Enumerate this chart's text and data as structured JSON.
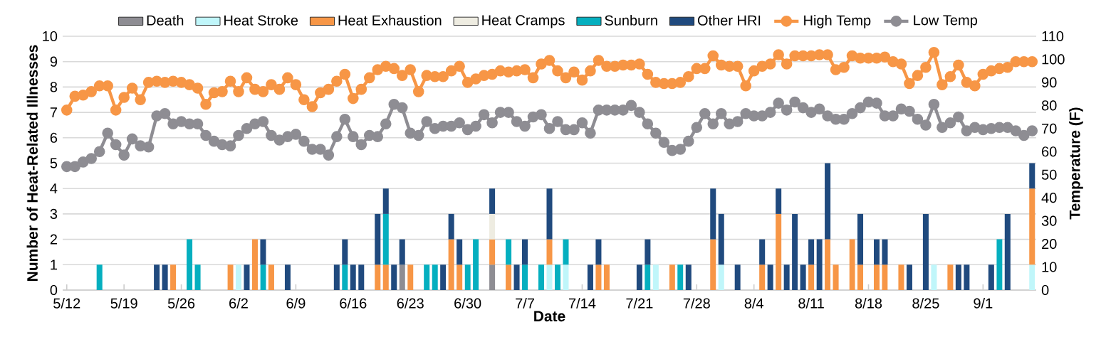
{
  "chart_data": {
    "type": "bar",
    "stacked": true,
    "xlabel": "Date",
    "ylabel": "Number of Heat-Related Illnesses",
    "y2label": "Temperature (F)",
    "categories": [
      "5/12",
      null,
      null,
      null,
      null,
      null,
      null,
      "5/19",
      null,
      null,
      null,
      null,
      null,
      null,
      "5/26",
      null,
      null,
      null,
      null,
      null,
      null,
      "6/2",
      null,
      null,
      null,
      null,
      null,
      null,
      "6/9",
      null,
      null,
      null,
      null,
      null,
      null,
      "6/16",
      null,
      null,
      null,
      null,
      null,
      null,
      "6/23",
      null,
      null,
      null,
      null,
      null,
      null,
      "6/30",
      null,
      null,
      null,
      null,
      null,
      null,
      "7/7",
      null,
      null,
      null,
      null,
      null,
      null,
      "7/14",
      null,
      null,
      null,
      null,
      null,
      null,
      "7/21",
      null,
      null,
      null,
      null,
      null,
      null,
      "7/28",
      null,
      null,
      null,
      null,
      null,
      null,
      "8/4",
      null,
      null,
      null,
      null,
      null,
      null,
      "8/11",
      null,
      null,
      null,
      null,
      null,
      null,
      "8/18",
      null,
      null,
      null,
      null,
      null,
      null,
      "8/25",
      null,
      null,
      null,
      null,
      null,
      null,
      "9/1",
      null,
      null,
      null,
      null,
      null,
      null
    ],
    "ylim": [
      0,
      10
    ],
    "yticks": [
      0,
      1,
      2,
      3,
      4,
      5,
      6,
      7,
      8,
      9,
      10
    ],
    "y2lim": [
      0,
      110
    ],
    "y2ticks": [
      0,
      10,
      20,
      30,
      40,
      50,
      60,
      70,
      80,
      90,
      100,
      110
    ],
    "grid": "y",
    "legend": "top",
    "series": [
      {
        "name": "Death",
        "color": "#8e8d93",
        "values": [
          0,
          0,
          0,
          0,
          0,
          0,
          0,
          0,
          0,
          0,
          0,
          0,
          0,
          0,
          0,
          0,
          0,
          0,
          0,
          0,
          0,
          0,
          0,
          0,
          0,
          0,
          0,
          0,
          0,
          0,
          0,
          0,
          0,
          0,
          0,
          0,
          0,
          0,
          0,
          0,
          0,
          1,
          0,
          0,
          0,
          0,
          0,
          0,
          0,
          0,
          0,
          0,
          1,
          0,
          0,
          0,
          0,
          0,
          0,
          0,
          0,
          0,
          0,
          0,
          0,
          0,
          0,
          0,
          0,
          0,
          0,
          0,
          0,
          0,
          0,
          0,
          0,
          0,
          0,
          0,
          0,
          0,
          0,
          0,
          0,
          0,
          0,
          0,
          0,
          0,
          0,
          0,
          0,
          0,
          0,
          0,
          0,
          0,
          0,
          0,
          0,
          0,
          0,
          0,
          0,
          0,
          0,
          0,
          0,
          0,
          0,
          0,
          0,
          0,
          0,
          0,
          0,
          0,
          0
        ]
      },
      {
        "name": "Heat Stroke",
        "color": "#c0f6fa",
        "values": [
          0,
          0,
          0,
          0,
          0,
          0,
          0,
          0,
          0,
          0,
          0,
          0,
          0,
          0,
          0,
          0,
          0,
          0,
          0,
          0,
          0,
          1,
          0,
          0,
          0,
          0,
          0,
          0,
          0,
          0,
          0,
          0,
          0,
          0,
          0,
          0,
          0,
          0,
          0,
          0,
          0,
          0,
          0,
          0,
          0,
          0,
          0,
          0,
          0,
          0,
          0,
          0,
          0,
          0,
          0,
          0,
          0,
          0,
          0,
          1,
          0,
          1,
          0,
          0,
          0,
          0,
          0,
          0,
          0,
          0,
          0,
          0,
          1,
          0,
          0,
          0,
          0,
          0,
          0,
          0,
          1,
          0,
          0,
          0,
          0,
          0,
          0,
          0,
          0,
          0,
          0,
          0,
          0,
          0,
          0,
          0,
          0,
          0,
          0,
          0,
          0,
          0,
          0,
          0,
          0,
          0,
          1,
          0,
          0,
          0,
          0,
          0,
          0,
          0,
          0,
          0,
          0,
          0,
          1
        ]
      },
      {
        "name": "Heat Exhaustion",
        "color": "#f79646",
        "values": [
          0,
          0,
          0,
          0,
          0,
          0,
          0,
          0,
          0,
          0,
          0,
          0,
          0,
          1,
          0,
          0,
          0,
          0,
          0,
          0,
          1,
          0,
          0,
          2,
          0,
          1,
          0,
          0,
          0,
          0,
          0,
          0,
          0,
          0,
          0,
          0,
          0,
          0,
          1,
          1,
          0,
          0,
          1,
          0,
          0,
          0,
          0,
          2,
          1,
          0,
          0,
          0,
          1,
          0,
          1,
          0,
          0,
          0,
          0,
          1,
          0,
          0,
          0,
          0,
          0,
          1,
          1,
          0,
          0,
          0,
          0,
          0,
          0,
          0,
          1,
          0,
          0,
          0,
          0,
          2,
          0,
          0,
          0,
          0,
          0,
          1,
          0,
          3,
          0,
          0,
          0,
          1,
          0,
          2,
          1,
          0,
          2,
          1,
          0,
          1,
          1,
          0,
          1,
          0,
          0,
          0,
          0,
          0,
          1,
          0,
          0,
          0,
          0,
          0,
          0,
          0,
          0,
          0,
          3
        ]
      },
      {
        "name": "Heat Cramps",
        "color": "#eeece1",
        "values": [
          0,
          0,
          0,
          0,
          0,
          0,
          0,
          0,
          0,
          0,
          0,
          0,
          0,
          0,
          0,
          0,
          0,
          0,
          0,
          0,
          0,
          0,
          0,
          0,
          0,
          0,
          0,
          0,
          0,
          0,
          0,
          0,
          0,
          0,
          0,
          0,
          0,
          0,
          0,
          0,
          0,
          0,
          0,
          0,
          0,
          0,
          0,
          0,
          0,
          0,
          0,
          0,
          1,
          0,
          0,
          0,
          0,
          0,
          0,
          0,
          0,
          0,
          0,
          0,
          0,
          0,
          0,
          0,
          0,
          0,
          0,
          0,
          0,
          0,
          0,
          0,
          0,
          0,
          0,
          0,
          0,
          0,
          0,
          0,
          0,
          0,
          0,
          0,
          0,
          0,
          0,
          0,
          0,
          0,
          0,
          0,
          0,
          0,
          0,
          0,
          0,
          0,
          0,
          0,
          0,
          0,
          0,
          0,
          0,
          0,
          0,
          0,
          0,
          0,
          0,
          0,
          0,
          0,
          0
        ]
      },
      {
        "name": "Sunburn",
        "color": "#05afbf",
        "values": [
          0,
          0,
          0,
          0,
          1,
          0,
          0,
          0,
          0,
          0,
          0,
          0,
          0,
          0,
          0,
          2,
          1,
          0,
          0,
          0,
          0,
          0,
          0,
          0,
          1,
          0,
          0,
          0,
          0,
          0,
          0,
          0,
          0,
          0,
          1,
          0,
          0,
          0,
          0,
          2,
          0,
          0,
          0,
          0,
          1,
          1,
          0,
          0,
          0,
          1,
          2,
          0,
          0,
          0,
          1,
          0,
          1,
          0,
          1,
          0,
          1,
          1,
          0,
          0,
          0,
          0,
          0,
          0,
          0,
          0,
          0,
          1,
          0,
          0,
          0,
          1,
          0,
          0,
          0,
          0,
          0,
          0,
          0,
          0,
          0,
          0,
          0,
          0,
          0,
          0,
          0,
          0,
          0,
          0,
          0,
          0,
          0,
          0,
          0,
          0,
          0,
          0,
          0,
          0,
          0,
          0,
          0,
          0,
          0,
          0,
          0,
          0,
          0,
          0,
          2,
          0,
          0,
          0,
          0
        ]
      },
      {
        "name": "Other HRI",
        "color": "#204a7e",
        "values": [
          0,
          0,
          0,
          0,
          0,
          0,
          0,
          0,
          0,
          0,
          0,
          1,
          1,
          0,
          0,
          0,
          0,
          0,
          0,
          0,
          0,
          0,
          1,
          0,
          1,
          0,
          0,
          1,
          0,
          0,
          0,
          0,
          0,
          1,
          1,
          1,
          1,
          0,
          2,
          1,
          1,
          1,
          0,
          0,
          0,
          0,
          1,
          1,
          1,
          0,
          0,
          0,
          1,
          0,
          0,
          1,
          1,
          0,
          0,
          2,
          0,
          0,
          0,
          0,
          1,
          1,
          0,
          0,
          0,
          0,
          1,
          1,
          0,
          0,
          0,
          0,
          1,
          0,
          0,
          2,
          2,
          0,
          1,
          0,
          0,
          1,
          1,
          1,
          1,
          3,
          1,
          1,
          2,
          3,
          0,
          0,
          0,
          2,
          0,
          1,
          1,
          0,
          0,
          1,
          0,
          3,
          0,
          0,
          0,
          1,
          1,
          0,
          0,
          1,
          0,
          3,
          0,
          0,
          1
        ]
      },
      {
        "name": "High Temp",
        "type": "line",
        "axis": "y2",
        "marker": "circle",
        "line_style": "solid",
        "color": "#f79646",
        "values": [
          78,
          84,
          84.5,
          86,
          88.5,
          88.5,
          78,
          83.5,
          87.5,
          82.5,
          90,
          90.5,
          90,
          90.5,
          90,
          89,
          87.5,
          80.5,
          85.5,
          86,
          90.5,
          86,
          92,
          87,
          86,
          89,
          87,
          92,
          89,
          82.5,
          79.5,
          85.5,
          87,
          90.5,
          93.5,
          83,
          87,
          92,
          95.5,
          97,
          96,
          93,
          95.5,
          86,
          93,
          92.5,
          92.5,
          95,
          97,
          90,
          91.5,
          93,
          93.5,
          95,
          94.5,
          95,
          95.5,
          92,
          98,
          99.5,
          95,
          92,
          94.5,
          91,
          95,
          99.5,
          97,
          97,
          97.5,
          97.5,
          98,
          93.5,
          90,
          89.5,
          89.5,
          90,
          92.5,
          96,
          96,
          101.5,
          97.5,
          97,
          97,
          88.5,
          95,
          97,
          98,
          102,
          98,
          101.5,
          101.5,
          101.5,
          102,
          102,
          95.5,
          96.5,
          101.5,
          100.5,
          100.5,
          100.5,
          101,
          99,
          98,
          89.5,
          93,
          96.5,
          103,
          89,
          92.5,
          97.5,
          90,
          88.5,
          93.5,
          95,
          96,
          96.5,
          99,
          99,
          99
        ]
      },
      {
        "name": "Low Temp",
        "type": "line",
        "axis": "y2",
        "marker": "circle",
        "line_style": "solid",
        "color": "#8e8d93",
        "values": [
          53.5,
          53.5,
          55.5,
          57,
          60,
          68,
          63,
          58.5,
          65.5,
          62.5,
          62,
          75.5,
          76.5,
          72,
          73,
          72,
          72,
          67,
          64.5,
          63,
          62.5,
          67,
          70,
          72,
          73,
          67,
          65,
          66.5,
          67.5,
          64.5,
          61,
          61,
          58.5,
          66.5,
          74,
          66.5,
          63,
          67,
          66.5,
          72,
          80.5,
          79,
          68,
          67,
          73,
          70,
          71,
          71,
          72.5,
          69.5,
          71,
          76,
          72.5,
          77,
          77,
          73,
          71,
          75,
          76,
          70,
          73,
          69.5,
          69.5,
          72.5,
          68,
          78,
          78,
          78,
          78,
          80,
          77,
          72,
          68,
          64,
          60.5,
          61,
          64.5,
          70.5,
          76.5,
          72,
          76.5,
          72,
          73,
          76.5,
          75.5,
          75.5,
          77,
          81,
          78,
          81.5,
          79,
          77,
          78.5,
          75.5,
          74,
          74,
          76.5,
          79,
          81.5,
          81,
          75.5,
          75.5,
          78.5,
          77.5,
          74,
          71.5,
          80.5,
          70.5,
          72.5,
          75,
          69,
          70.5,
          69.5,
          70,
          70.5,
          70.5,
          69,
          67,
          69
        ]
      }
    ]
  }
}
